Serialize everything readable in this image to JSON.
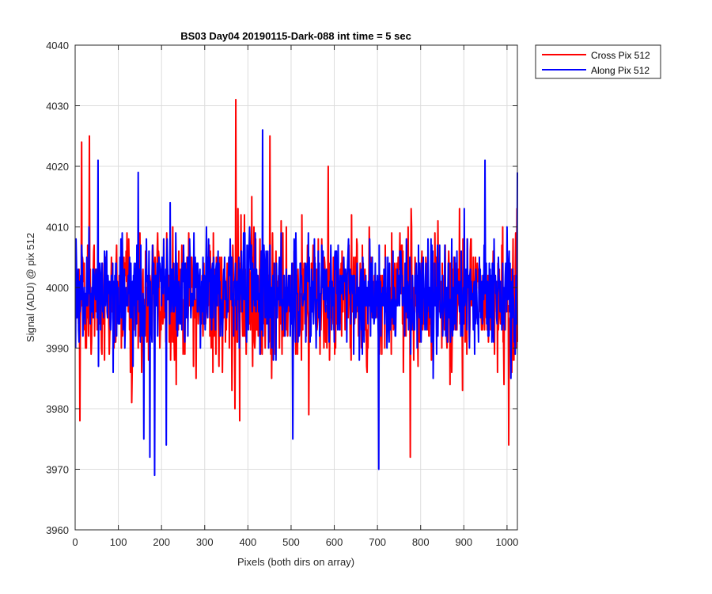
{
  "chart_data": {
    "type": "line",
    "title": "BS03 Day04 20190115-Dark-088 int time = 5 sec",
    "xlabel": "Pixels (both dirs on array)",
    "ylabel": "Signal (ADU) @ pix 512",
    "xlim": [
      0,
      1024
    ],
    "ylim": [
      3960,
      4040
    ],
    "xticks": [
      0,
      100,
      200,
      300,
      400,
      500,
      600,
      700,
      800,
      900,
      1000
    ],
    "yticks": [
      3960,
      3970,
      3980,
      3990,
      4000,
      4010,
      4020,
      4030,
      4040
    ],
    "grid": true,
    "legend_position": "outside-top-right",
    "noise_seed": [
      7,
      13
    ],
    "series": [
      {
        "name": "Cross Pix 512",
        "color": "#ff0000",
        "baseline": 3998,
        "spread": 5,
        "n": 1024,
        "spikes": [
          [
            10,
            3978
          ],
          [
            14,
            4024
          ],
          [
            32,
            4025
          ],
          [
            130,
            3981
          ],
          [
            371,
            4031
          ],
          [
            380,
            3978
          ],
          [
            408,
            4015
          ],
          [
            450,
            4025
          ],
          [
            540,
            3979
          ],
          [
            585,
            4020
          ],
          [
            775,
            3972
          ],
          [
            1003,
            3974
          ],
          [
            1022,
            4013
          ]
        ]
      },
      {
        "name": "Along Pix 512",
        "color": "#0000ff",
        "baseline": 3999,
        "spread": 4.5,
        "n": 1024,
        "spikes": [
          [
            52,
            4021
          ],
          [
            145,
            4019
          ],
          [
            158,
            3975
          ],
          [
            172,
            3972
          ],
          [
            183,
            3969
          ],
          [
            210,
            3974
          ],
          [
            433,
            4026
          ],
          [
            503,
            3975
          ],
          [
            702,
            3970
          ],
          [
            948,
            4021
          ],
          [
            1008,
            3985
          ],
          [
            1023,
            4019
          ]
        ]
      }
    ]
  }
}
